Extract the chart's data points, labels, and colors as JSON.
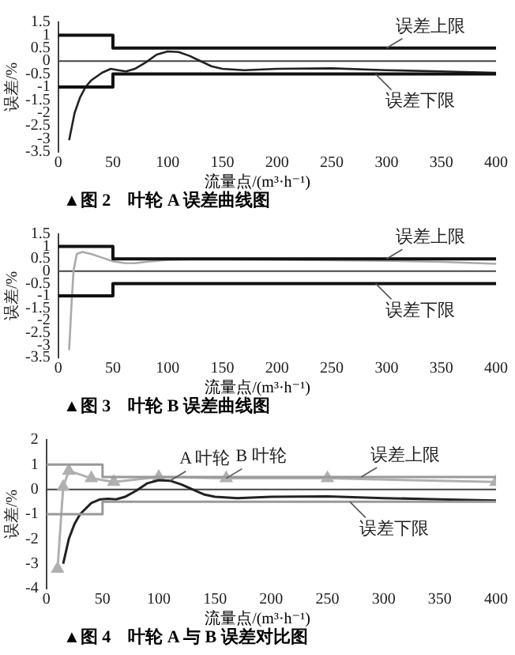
{
  "chart_data": [
    {
      "type": "line",
      "title": "▲图 2　叶轮 A 误差曲线图",
      "xlabel": "流量点/(m³·h⁻¹)",
      "ylabel": "误差/%",
      "xlim": [
        0,
        400
      ],
      "xticks": [
        0,
        50,
        100,
        150,
        200,
        250,
        300,
        350,
        400
      ],
      "ylim": [
        -3.5,
        1.5
      ],
      "yticks": [
        -3.5,
        -3,
        -2.5,
        -2,
        -1.5,
        -1,
        -0.5,
        0,
        0.5,
        1,
        1.5
      ],
      "grid": false,
      "legend": false,
      "series": [
        {
          "color": "#111111",
          "x": [
            0,
            50,
            50,
            400
          ],
          "values": [
            1,
            1,
            0.5,
            0.5
          ]
        },
        {
          "color": "#111111",
          "x": [
            0,
            50,
            50,
            400
          ],
          "values": [
            -1,
            -1,
            -0.5,
            -0.5
          ]
        },
        {
          "color": "#222222",
          "x": [
            10,
            15,
            20,
            25,
            30,
            40,
            48,
            55,
            62,
            70,
            80,
            90,
            100,
            110,
            120,
            130,
            140,
            150,
            170,
            200,
            250,
            300,
            350,
            400
          ],
          "values": [
            -3.05,
            -2,
            -1.4,
            -1,
            -0.75,
            -0.45,
            -0.3,
            -0.35,
            -0.4,
            -0.3,
            -0.05,
            0.25,
            0.37,
            0.35,
            0.2,
            0,
            -0.2,
            -0.3,
            -0.35,
            -0.3,
            -0.28,
            -0.35,
            -0.4,
            -0.45
          ]
        }
      ],
      "ref_lines": [
        {
          "axis": "y",
          "value": 0
        }
      ],
      "annotations": [
        {
          "text": "误差上限",
          "x": 300,
          "y": 0.5
        },
        {
          "text": "误差下限",
          "x": 290,
          "y": -0.5
        }
      ]
    },
    {
      "type": "line",
      "title": "▲图 3　叶轮 B 误差曲线图",
      "xlabel": "流量点/(m³·h⁻¹)",
      "ylabel": "误差/%",
      "xlim": [
        0,
        400
      ],
      "xticks": [
        0,
        50,
        100,
        150,
        200,
        250,
        300,
        350,
        400
      ],
      "ylim": [
        -3.5,
        1.5
      ],
      "yticks": [
        -3.5,
        -3,
        -2.5,
        -2,
        -1.5,
        -1,
        -0.5,
        0,
        0.5,
        1,
        1.5
      ],
      "grid": false,
      "legend": false,
      "series": [
        {
          "color": "#111111",
          "x": [
            0,
            50,
            50,
            400
          ],
          "values": [
            1,
            1,
            0.5,
            0.5
          ]
        },
        {
          "color": "#111111",
          "x": [
            0,
            50,
            50,
            400
          ],
          "values": [
            -1,
            -1,
            -0.5,
            -0.5
          ]
        },
        {
          "color": "#aaaaaa",
          "x": [
            10,
            12,
            14,
            17,
            22,
            30,
            40,
            50,
            60,
            70,
            80,
            100,
            120,
            150,
            200,
            300,
            350,
            400
          ],
          "values": [
            -3.2,
            -1.5,
            0,
            0.7,
            0.78,
            0.7,
            0.55,
            0.4,
            0.33,
            0.32,
            0.38,
            0.46,
            0.48,
            0.48,
            0.47,
            0.42,
            0.38,
            0.3
          ]
        }
      ],
      "ref_lines": [
        {
          "axis": "y",
          "value": 0
        }
      ],
      "annotations": [
        {
          "text": "误差上限",
          "x": 300,
          "y": 0.5
        },
        {
          "text": "误差下限",
          "x": 290,
          "y": -0.5
        }
      ]
    },
    {
      "type": "line",
      "title": "▲图 4　叶轮 A 与 B 误差对比图",
      "xlabel": "流量点/(m³·h⁻¹)",
      "ylabel": "误差/%",
      "xlim": [
        0,
        400
      ],
      "xticks": [
        0,
        50,
        100,
        150,
        200,
        250,
        300,
        350,
        400
      ],
      "ylim": [
        -4,
        2
      ],
      "yticks": [
        -4,
        -3,
        -2,
        -1,
        0,
        1,
        2
      ],
      "grid": false,
      "legend": false,
      "series": [
        {
          "color": "#999999",
          "x": [
            0,
            50,
            50,
            400
          ],
          "values": [
            1,
            1,
            0.5,
            0.5
          ]
        },
        {
          "color": "#999999",
          "x": [
            0,
            50,
            50,
            400
          ],
          "values": [
            -1,
            -1,
            -0.5,
            -0.5
          ]
        },
        {
          "color": "#222222",
          "x": [
            15,
            20,
            25,
            30,
            40,
            48,
            55,
            62,
            70,
            80,
            90,
            100,
            110,
            120,
            130,
            140,
            150,
            170,
            200,
            250,
            300,
            350,
            400
          ],
          "values": [
            -3,
            -2,
            -1.4,
            -1,
            -0.55,
            -0.4,
            -0.38,
            -0.4,
            -0.3,
            -0.05,
            0.25,
            0.37,
            0.35,
            0.2,
            0,
            -0.2,
            -0.3,
            -0.35,
            -0.3,
            -0.28,
            -0.35,
            -0.4,
            -0.45
          ]
        },
        {
          "color": "#b0b0b0",
          "marker": "triangle",
          "x": [
            10,
            15,
            20,
            40,
            60,
            100,
            160,
            250,
            400
          ],
          "values": [
            -3.2,
            0.1,
            0.75,
            0.45,
            0.3,
            0.5,
            0.45,
            0.45,
            0.3
          ]
        }
      ],
      "ref_lines": [
        {
          "axis": "y",
          "value": 0
        }
      ],
      "annotations": [
        {
          "text": "A 叶轮",
          "x": 110,
          "y": 0.35
        },
        {
          "text": "B 叶轮",
          "x": 160,
          "y": 0.45
        },
        {
          "text": "误差上限",
          "x": 280,
          "y": 0.5
        },
        {
          "text": "误差下限",
          "x": 270,
          "y": -0.5
        }
      ]
    }
  ]
}
